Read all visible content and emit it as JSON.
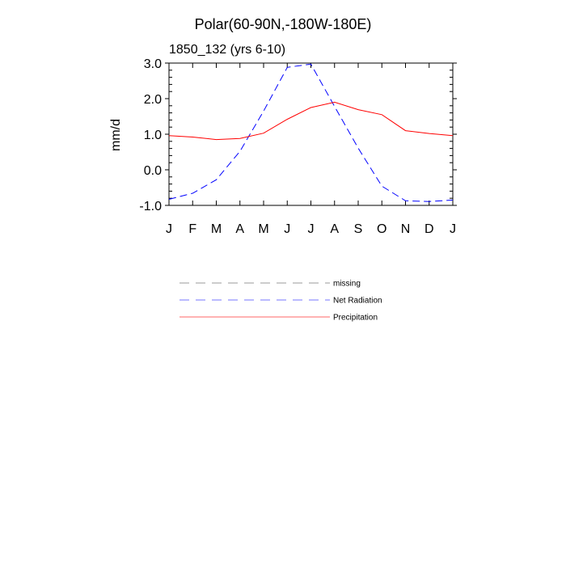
{
  "chart_data": {
    "type": "line",
    "title": "Polar(60-90N,-180W-180E)",
    "subtitle": "1850_132 (yrs 6-10)",
    "xlabel": "",
    "ylabel": "mm/d",
    "categories": [
      "J",
      "F",
      "M",
      "A",
      "M",
      "J",
      "J",
      "A",
      "S",
      "O",
      "N",
      "D",
      "J"
    ],
    "ylim": [
      -1.0,
      3.0
    ],
    "yticks": [
      "-1.0",
      "0.0",
      "1.0",
      "2.0",
      "3.0"
    ],
    "series": [
      {
        "name": "Net Radiation",
        "color": "#0000ff",
        "dash": "dashed",
        "values": [
          -0.83,
          -0.66,
          -0.28,
          0.52,
          1.65,
          2.88,
          2.97,
          1.78,
          0.61,
          -0.46,
          -0.87,
          -0.89,
          -0.85
        ]
      },
      {
        "name": "Precipitation",
        "color": "#ff0000",
        "dash": "solid",
        "values": [
          0.96,
          0.92,
          0.85,
          0.88,
          1.03,
          1.42,
          1.75,
          1.9,
          1.69,
          1.55,
          1.1,
          1.02,
          0.96
        ]
      }
    ],
    "legend": [
      {
        "label": "missing",
        "color": "#999999",
        "dash": "dashed"
      },
      {
        "label": "Net Radiation",
        "color": "#7777ff",
        "dash": "dashed"
      },
      {
        "label": "Precipitation",
        "color": "#ff6666",
        "dash": "solid"
      }
    ]
  }
}
